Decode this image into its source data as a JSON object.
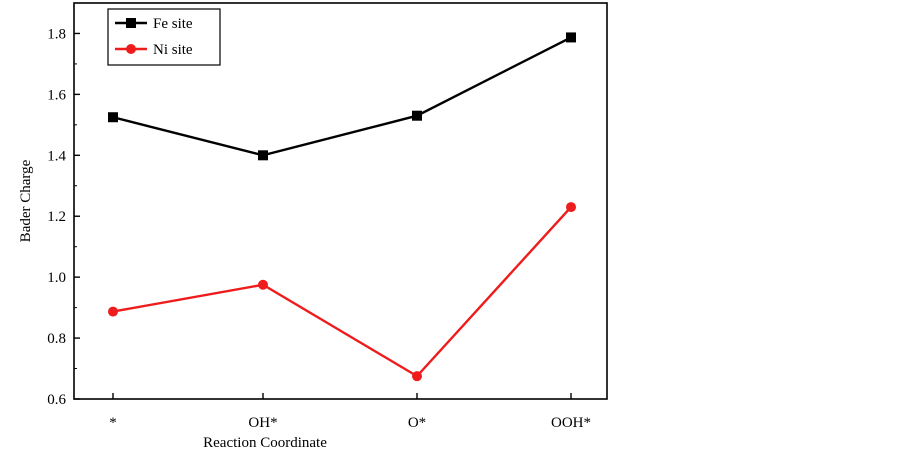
{
  "chart_data": {
    "type": "line",
    "title": "",
    "xlabel": "Reaction Coordinate",
    "ylabel": "Bader Charge",
    "categories": [
      "*",
      "OH*",
      "O*",
      "OOH*"
    ],
    "ylim": [
      0.6,
      1.9
    ],
    "yticks": [
      "0.6",
      "0.8",
      "1.0",
      "1.2",
      "1.4",
      "1.6",
      "1.8"
    ],
    "grid": false,
    "legend_position": "top-left",
    "series": [
      {
        "name": "Fe site",
        "color": "#000000",
        "marker": "square",
        "values": [
          1.525,
          1.4,
          1.53,
          1.787
        ]
      },
      {
        "name": "Ni site",
        "color": "#ee1c1c",
        "marker": "circle",
        "values": [
          0.887,
          0.975,
          0.675,
          1.23
        ]
      }
    ]
  }
}
